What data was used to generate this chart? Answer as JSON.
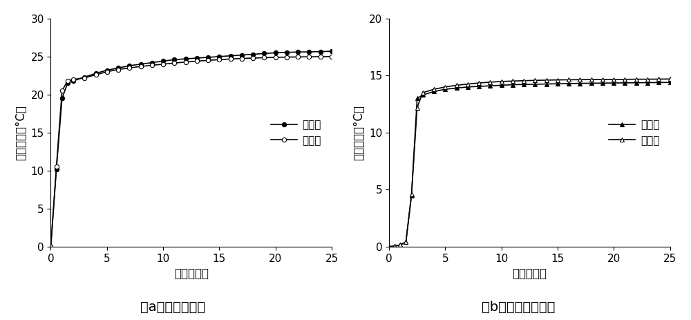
{
  "subplot_a": {
    "title": "（a）基准混凝土",
    "xlabel": "龄期（天）",
    "ylabel": "维热温升（°C）",
    "xlim": [
      0,
      25
    ],
    "ylim": [
      0,
      30
    ],
    "yticks": [
      0,
      5,
      10,
      15,
      20,
      25,
      30
    ],
    "xticks": [
      0,
      5,
      10,
      15,
      20,
      25
    ],
    "measured_x": [
      0,
      0.5,
      1,
      1.5,
      2,
      3,
      4,
      5,
      6,
      7,
      8,
      9,
      10,
      11,
      12,
      13,
      14,
      15,
      16,
      17,
      18,
      19,
      20,
      21,
      22,
      23,
      24,
      25
    ],
    "measured_y": [
      0,
      10.2,
      19.5,
      21.5,
      21.8,
      22.3,
      22.8,
      23.2,
      23.5,
      23.8,
      24.0,
      24.2,
      24.4,
      24.6,
      24.7,
      24.8,
      24.9,
      25.0,
      25.1,
      25.2,
      25.3,
      25.4,
      25.5,
      25.55,
      25.6,
      25.62,
      25.65,
      25.7
    ],
    "fitted_x": [
      0,
      0.5,
      1,
      1.5,
      2,
      3,
      4,
      5,
      6,
      7,
      8,
      9,
      10,
      11,
      12,
      13,
      14,
      15,
      16,
      17,
      18,
      19,
      20,
      21,
      22,
      23,
      24,
      25
    ],
    "fitted_y": [
      0,
      10.5,
      20.5,
      21.8,
      22.0,
      22.2,
      22.6,
      23.0,
      23.3,
      23.5,
      23.7,
      23.85,
      24.0,
      24.15,
      24.28,
      24.4,
      24.5,
      24.6,
      24.68,
      24.75,
      24.8,
      24.85,
      24.9,
      24.93,
      24.95,
      24.97,
      24.98,
      25.0
    ],
    "legend_measured": "实测值",
    "legend_fitted": "拟合值"
  },
  "subplot_b": {
    "title": "（b）超高掐混凝土",
    "xlabel": "龄期（天）",
    "ylabel": "维热温升（°C）",
    "xlim": [
      0,
      25
    ],
    "ylim": [
      0,
      20
    ],
    "yticks": [
      0,
      5,
      10,
      15,
      20
    ],
    "xticks": [
      0,
      5,
      10,
      15,
      20,
      25
    ],
    "measured_x": [
      0,
      0.5,
      1,
      1.5,
      2,
      2.5,
      3,
      4,
      5,
      6,
      7,
      8,
      9,
      10,
      11,
      12,
      13,
      14,
      15,
      16,
      17,
      18,
      19,
      20,
      21,
      22,
      23,
      24,
      25
    ],
    "measured_y": [
      0,
      0.05,
      0.15,
      0.4,
      4.5,
      13.0,
      13.3,
      13.6,
      13.8,
      13.9,
      14.0,
      14.05,
      14.1,
      14.15,
      14.2,
      14.22,
      14.24,
      14.26,
      14.28,
      14.3,
      14.32,
      14.33,
      14.34,
      14.35,
      14.36,
      14.37,
      14.38,
      14.39,
      14.4
    ],
    "fitted_x": [
      0,
      0.5,
      1,
      1.5,
      2,
      2.5,
      3,
      4,
      5,
      6,
      7,
      8,
      9,
      10,
      11,
      12,
      13,
      14,
      15,
      16,
      17,
      18,
      19,
      20,
      21,
      22,
      23,
      24,
      25
    ],
    "fitted_y": [
      0,
      0.05,
      0.15,
      0.4,
      4.6,
      12.2,
      13.5,
      13.8,
      14.0,
      14.15,
      14.25,
      14.35,
      14.42,
      14.48,
      14.52,
      14.55,
      14.58,
      14.6,
      14.62,
      14.63,
      14.64,
      14.65,
      14.65,
      14.66,
      14.67,
      14.68,
      14.68,
      14.69,
      14.7
    ],
    "legend_measured": "实测值",
    "legend_fitted": "拟合值"
  },
  "figure_bg": "#ffffff",
  "line_color": "#000000",
  "font_size_label": 12,
  "font_size_tick": 11,
  "font_size_title": 14,
  "font_size_legend": 11
}
